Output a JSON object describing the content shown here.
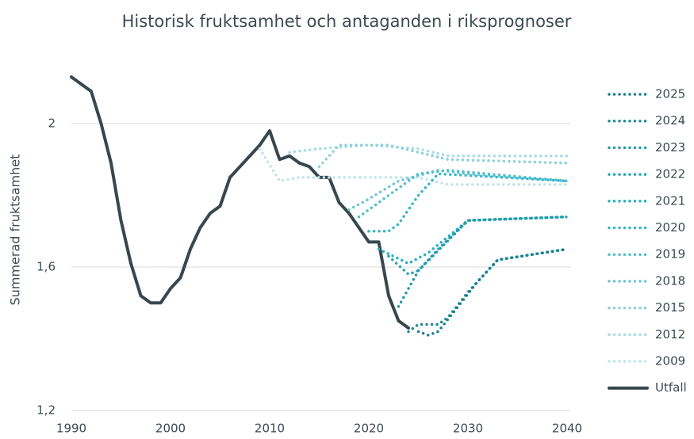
{
  "chart_data": {
    "type": "line",
    "title": "Historisk fruktsamhet och antaganden i riksprognoser",
    "y_label": "Summerad fruktsamhet",
    "xlim": [
      1990,
      2040
    ],
    "xticks": [
      1990,
      2000,
      2010,
      2020,
      2030,
      2040
    ],
    "ylim": [
      1.2,
      2.15
    ],
    "yticks": [
      {
        "value": 1.2,
        "label": "1,2"
      },
      {
        "value": 1.6,
        "label": "1,6"
      },
      2
    ],
    "grid": true,
    "legend": "right",
    "series": [
      {
        "name": "2025",
        "color": "#1b7f8e",
        "line_style": "dotted",
        "x": [
          2025,
          2026,
          2027,
          2029,
          2031,
          2033,
          2040
        ],
        "values": [
          1.42,
          1.41,
          1.42,
          1.49,
          1.56,
          1.62,
          1.65
        ]
      },
      {
        "name": "2024",
        "color": "#1f8a99",
        "line_style": "dotted",
        "x": [
          2024,
          2025,
          2027,
          2028,
          2030,
          2033,
          2040
        ],
        "values": [
          1.42,
          1.44,
          1.44,
          1.46,
          1.53,
          1.62,
          1.65
        ]
      },
      {
        "name": "2023",
        "color": "#2199a8",
        "line_style": "dotted",
        "x": [
          2023,
          2025,
          2030,
          2040
        ],
        "values": [
          1.49,
          1.59,
          1.73,
          1.74
        ]
      },
      {
        "name": "2022",
        "color": "#25a5b5",
        "line_style": "dotted",
        "x": [
          2022,
          2024,
          2025,
          2027,
          2030,
          2040
        ],
        "values": [
          1.63,
          1.58,
          1.59,
          1.65,
          1.73,
          1.74
        ]
      },
      {
        "name": "2021",
        "color": "#2aafbf",
        "line_style": "dotted",
        "x": [
          2021,
          2024,
          2026,
          2030,
          2040
        ],
        "values": [
          1.65,
          1.61,
          1.64,
          1.73,
          1.74
        ]
      },
      {
        "name": "2020",
        "color": "#33b8c6",
        "line_style": "dotted",
        "x": [
          2020,
          2022,
          2023,
          2025,
          2027,
          2040
        ],
        "values": [
          1.7,
          1.7,
          1.72,
          1.8,
          1.86,
          1.84
        ]
      },
      {
        "name": "2019",
        "color": "#4fbfcd",
        "line_style": "dotted",
        "x": [
          2019,
          2022,
          2025,
          2028,
          2040
        ],
        "values": [
          1.74,
          1.8,
          1.86,
          1.87,
          1.84
        ]
      },
      {
        "name": "2018",
        "color": "#6dc6d4",
        "line_style": "dotted",
        "x": [
          2018,
          2020,
          2023,
          2027,
          2030,
          2040
        ],
        "values": [
          1.76,
          1.79,
          1.84,
          1.87,
          1.86,
          1.84
        ]
      },
      {
        "name": "2015",
        "color": "#8dd0dc",
        "line_style": "dotted",
        "x": [
          2015,
          2016,
          2017,
          2022,
          2025,
          2028,
          2040
        ],
        "values": [
          1.88,
          1.91,
          1.94,
          1.94,
          1.92,
          1.9,
          1.89
        ]
      },
      {
        "name": "2012",
        "color": "#a8dbe4",
        "line_style": "dotted",
        "x": [
          2012,
          2015,
          2020,
          2025,
          2028,
          2040
        ],
        "values": [
          1.92,
          1.93,
          1.94,
          1.93,
          1.91,
          1.91
        ]
      },
      {
        "name": "2009",
        "color": "#c2e4ea",
        "line_style": "dotted",
        "x": [
          2009,
          2011,
          2013,
          2025,
          2028,
          2040
        ],
        "values": [
          1.93,
          1.84,
          1.85,
          1.85,
          1.83,
          1.83
        ]
      },
      {
        "name": "Utfall",
        "color": "#37474f",
        "line_style": "solid",
        "x": [
          1990,
          1991,
          1992,
          1993,
          1994,
          1995,
          1996,
          1997,
          1998,
          1999,
          2000,
          2001,
          2002,
          2003,
          2004,
          2005,
          2006,
          2007,
          2008,
          2009,
          2010,
          2011,
          2012,
          2013,
          2014,
          2015,
          2016,
          2017,
          2018,
          2019,
          2020,
          2021,
          2022,
          2023,
          2024
        ],
        "values": [
          2.13,
          2.11,
          2.09,
          2.0,
          1.89,
          1.73,
          1.61,
          1.52,
          1.5,
          1.5,
          1.54,
          1.57,
          1.65,
          1.71,
          1.75,
          1.77,
          1.85,
          1.88,
          1.91,
          1.94,
          1.98,
          1.9,
          1.91,
          1.89,
          1.88,
          1.85,
          1.85,
          1.78,
          1.75,
          1.71,
          1.67,
          1.67,
          1.52,
          1.45,
          1.43
        ]
      }
    ]
  }
}
